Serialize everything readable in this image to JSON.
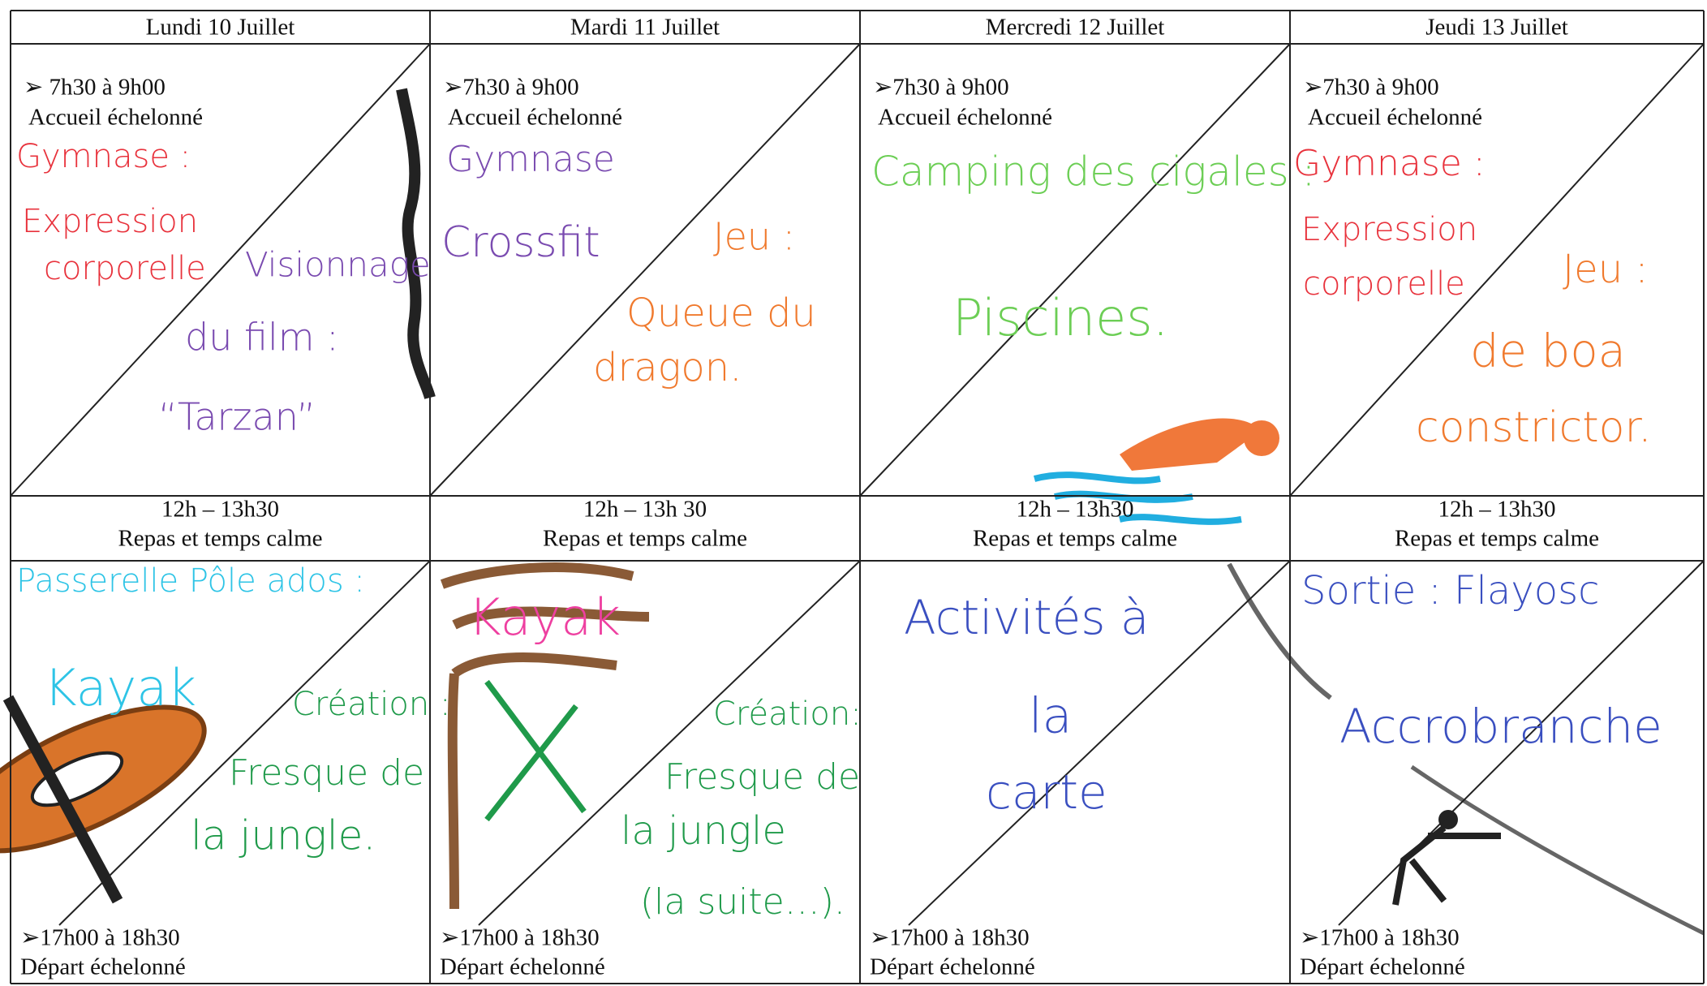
{
  "days": [
    {
      "header": "Lundi 10 Juillet",
      "arrival": {
        "time": "➢ 7h30 à 9h00",
        "label": "Accueil échelonné"
      },
      "morning_notes": [
        {
          "text": "Gymnase :",
          "color": "#e8323c"
        },
        {
          "text": "Expression",
          "color": "#e8323c"
        },
        {
          "text": "corporelle",
          "color": "#e8323c"
        },
        {
          "text": "Visionnage",
          "color": "#7a4bb0"
        },
        {
          "text": "du film :",
          "color": "#7a4bb0"
        },
        {
          "text": "“Tarzan”",
          "color": "#7a4bb0"
        }
      ],
      "lunch": {
        "time": "12h – 13h30",
        "label": "Repas et temps calme"
      },
      "afternoon_notes": [
        {
          "text": "Passerelle Pôle ados :",
          "color": "#2ec4e6"
        },
        {
          "text": "Kayak",
          "color": "#2ec4e6"
        },
        {
          "text": "Création :",
          "color": "#1f9a4a"
        },
        {
          "text": "Fresque de",
          "color": "#1f9a4a"
        },
        {
          "text": "la jungle.",
          "color": "#1f9a4a"
        }
      ],
      "departure": {
        "time": "➢17h00  à 18h30",
        "label": "Départ échelonné"
      }
    },
    {
      "header": "Mardi 11 Juillet",
      "arrival": {
        "time": "➢7h30 à 9h00",
        "label": "Accueil échelonné"
      },
      "morning_notes": [
        {
          "text": "Gymnase",
          "color": "#7a4bb0"
        },
        {
          "text": "Crossfit",
          "color": "#7a4bb0"
        },
        {
          "text": "Jeu :",
          "color": "#f07a2e"
        },
        {
          "text": "Queue du",
          "color": "#f07a2e"
        },
        {
          "text": "dragon.",
          "color": "#f07a2e"
        }
      ],
      "lunch": {
        "time": "12h – 13h 30",
        "label": "Repas et temps calme"
      },
      "afternoon_notes": [
        {
          "text": "Kayak",
          "color": "#ee3fa0"
        },
        {
          "text": "Création:",
          "color": "#1f9a4a"
        },
        {
          "text": "Fresque de",
          "color": "#1f9a4a"
        },
        {
          "text": "la jungle",
          "color": "#1f9a4a"
        },
        {
          "text": "(la suite…).",
          "color": "#1f9a4a"
        }
      ],
      "departure": {
        "time": "➢17h00  à 18h30",
        "label": "Départ échelonné"
      }
    },
    {
      "header": "Mercredi 12 Juillet",
      "arrival": {
        "time": "➢7h30 à 9h00",
        "label": "Accueil échelonné"
      },
      "morning_notes": [
        {
          "text": "Camping des cigales :",
          "color": "#6cce55"
        },
        {
          "text": "Piscines.",
          "color": "#6cce55"
        }
      ],
      "lunch": {
        "time": "12h – 13h30",
        "label": "Repas et temps calme"
      },
      "afternoon_notes": [
        {
          "text": "Activités à",
          "color": "#3a4fc0"
        },
        {
          "text": "la",
          "color": "#3a4fc0"
        },
        {
          "text": "carte",
          "color": "#3a4fc0"
        }
      ],
      "departure": {
        "time": "➢17h00  à 18h30",
        "label": "Départ échelonné"
      }
    },
    {
      "header": "Jeudi 13 Juillet",
      "arrival": {
        "time": "➢7h30 à 9h00",
        "label": "Accueil échelonné"
      },
      "morning_notes": [
        {
          "text": "Gymnase :",
          "color": "#e8323c"
        },
        {
          "text": "Expression",
          "color": "#e8323c"
        },
        {
          "text": "corporelle",
          "color": "#e8323c"
        },
        {
          "text": "Jeu :",
          "color": "#f07a2e"
        },
        {
          "text": "de boa",
          "color": "#f07a2e"
        },
        {
          "text": "constrictor.",
          "color": "#f07a2e"
        }
      ],
      "lunch": {
        "time": "12h – 13h30",
        "label": "Repas et temps calme"
      },
      "afternoon_notes": [
        {
          "text": "Sortie : Flayosc",
          "color": "#3a4fc0"
        },
        {
          "text": "Accrobranche",
          "color": "#3a4fc0"
        }
      ],
      "departure": {
        "time": "➢17h00  à 18h30",
        "label": "Départ échelonné"
      }
    }
  ]
}
